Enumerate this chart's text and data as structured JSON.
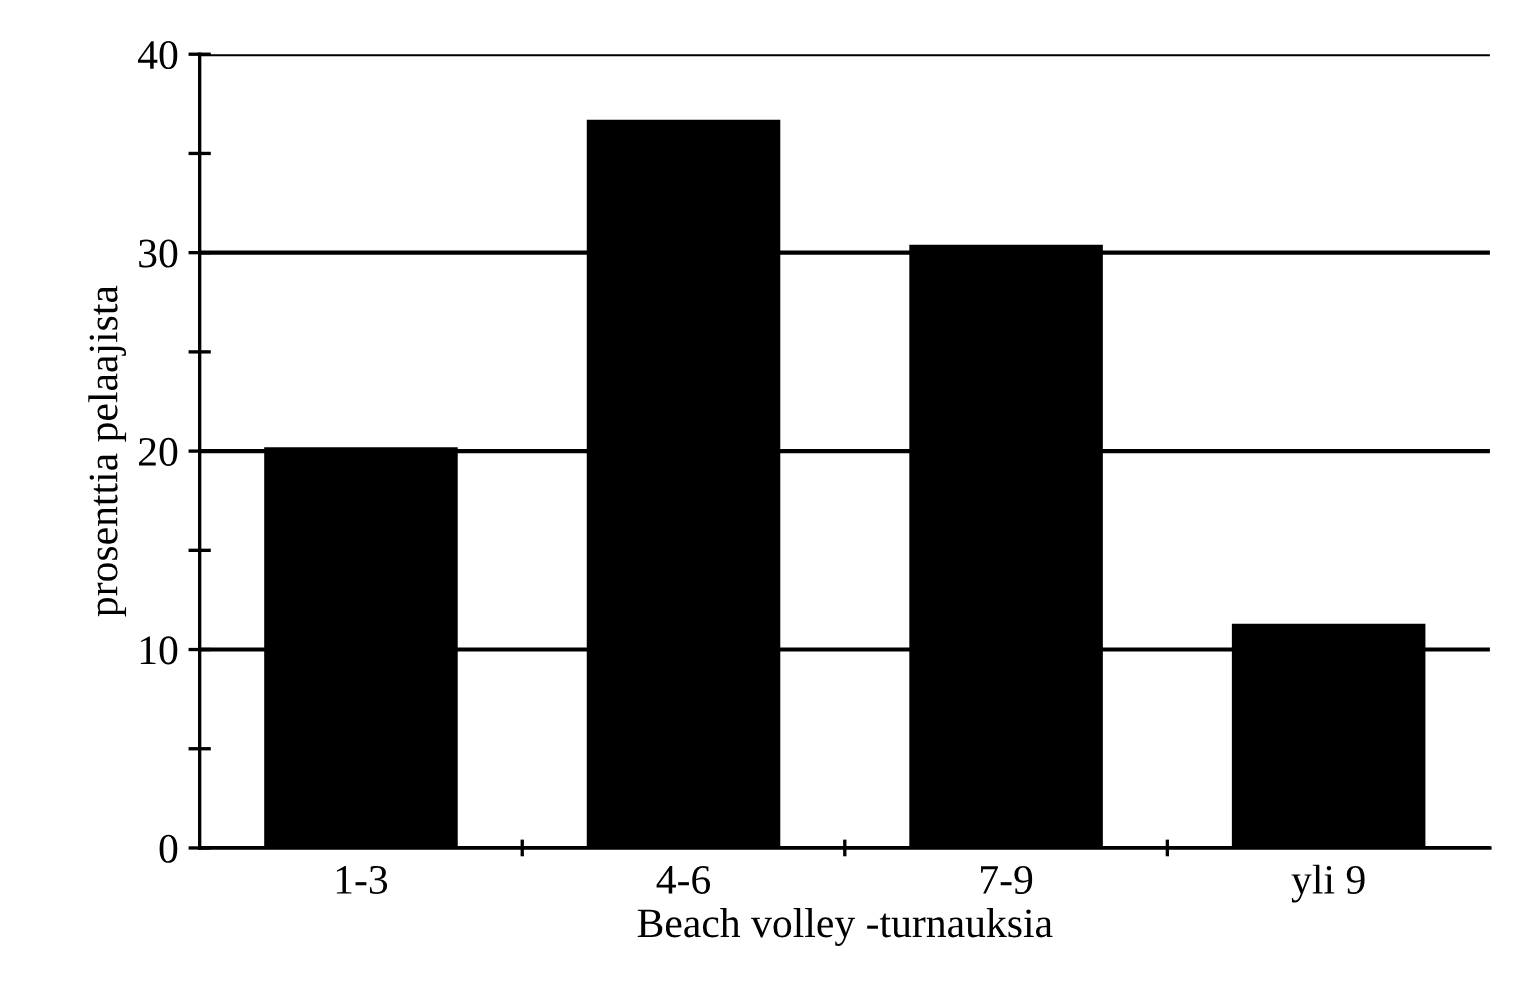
{
  "chart_data": {
    "type": "bar",
    "xlabel": "Beach volley -turnauksia",
    "ylabel": "prosenttia pelaajista",
    "categories": [
      "1-3",
      "4-6",
      "7-9",
      "yli 9"
    ],
    "values": [
      20.2,
      36.7,
      30.4,
      11.3
    ],
    "color": "#000000",
    "ylim": [
      0,
      40
    ],
    "yticks": [
      0,
      {
        "value": 5,
        "label": null
      },
      10,
      {
        "value": 15,
        "label": null
      },
      20,
      {
        "value": 25,
        "label": null
      },
      30,
      {
        "value": 35,
        "label": null
      },
      40
    ],
    "grid": "y"
  }
}
